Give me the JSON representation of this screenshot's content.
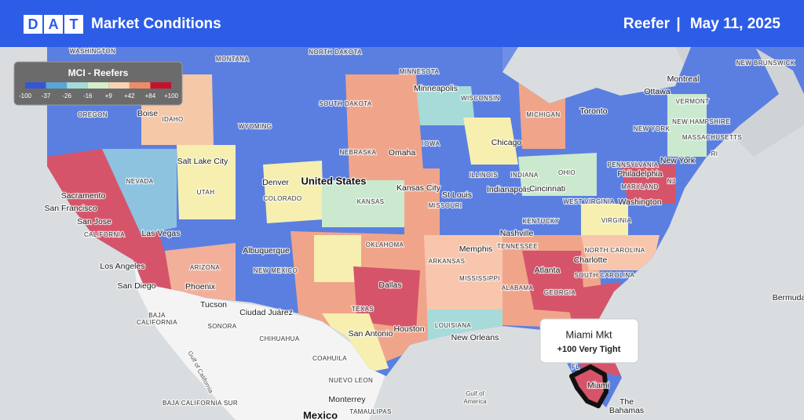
{
  "header": {
    "logo": "DAT",
    "title": "Market Conditions",
    "segment": "Reefer",
    "separator": "|",
    "date": "May 11, 2025"
  },
  "legend": {
    "title": "MCI - Reefers",
    "colors": [
      "#3756d4",
      "#5aa6d6",
      "#a6dbd9",
      "#d6eec9",
      "#f8d2b2",
      "#ee8c68",
      "#c8102e"
    ],
    "labels": [
      "-100",
      "-37",
      "-26",
      "-16",
      "+9",
      "+42",
      "+84",
      "+100"
    ]
  },
  "map_labels": [
    "WASHINGTON",
    "MONTANA",
    "NORTH DAKOTA",
    "MINNESOTA",
    "Minneapolis",
    "WISCONSIN",
    "MICHIGAN",
    "Toronto",
    "Ottawa",
    "Montreal",
    "NEW BRUNSWICK",
    "Boise",
    "OREGON",
    "IDAHO",
    "WYOMING",
    "SOUTH DAKOTA",
    "IOWA",
    "NEBRASKA",
    "Omaha",
    "Chicago",
    "VERMONT",
    "NEW HAMPSHIRE",
    "NEW YORK",
    "MASSACHUSETTS",
    "RI",
    "Salt Lake City",
    "NEVADA",
    "UTAH",
    "Denver",
    "COLORADO",
    "United States",
    "KANSAS",
    "Kansas City",
    "St Louis",
    "ILLINOIS",
    "INDIANA",
    "OHIO",
    "Indianapolis",
    "Cincinnati",
    "PENNSYLVANIA",
    "Philadelphia",
    "New York",
    "MARYLAND",
    "NJ",
    "WEST VIRGINIA",
    "Washington",
    "MISSOURI",
    "KENTUCKY",
    "VIRGINIA",
    "Sacramento",
    "San Francisco",
    "San Jose",
    "CALIFORNIA",
    "Las Vegas",
    "Nashville",
    "TENNESSEE",
    "NORTH CAROLINA",
    "OKLAHOMA",
    "ARKANSAS",
    "Memphis",
    "Charlotte",
    "Albuquerque",
    "ARIZONA",
    "Los Angeles",
    "NEW MEXICO",
    "Atlanta",
    "SOUTH CAROLINA",
    "MISSISSIPPI",
    "ALABAMA",
    "San Diego",
    "Phoenix",
    "Dallas",
    "GEORGIA",
    "Tucson",
    "Bermuda",
    "BAJA",
    "CALIFORNIA",
    "Ciudad Juárez",
    "TEXAS",
    "SONORA",
    "LOUISIANA",
    "Houston",
    "San Antonio",
    "CHIHUAHUA",
    "New Orleans",
    "COAHUILA",
    "Gulf of California",
    "NUEVO LEON",
    "Gulf of",
    "America",
    "Monterrey",
    "BAJA CALIFORNIA SUR",
    "TAMAULIPAS",
    "The",
    "Bahamas",
    "Mexico",
    "Miami",
    "FL"
  ],
  "callout": {
    "title": "Miami Mkt",
    "subtitle": "+100 Very Tight"
  }
}
